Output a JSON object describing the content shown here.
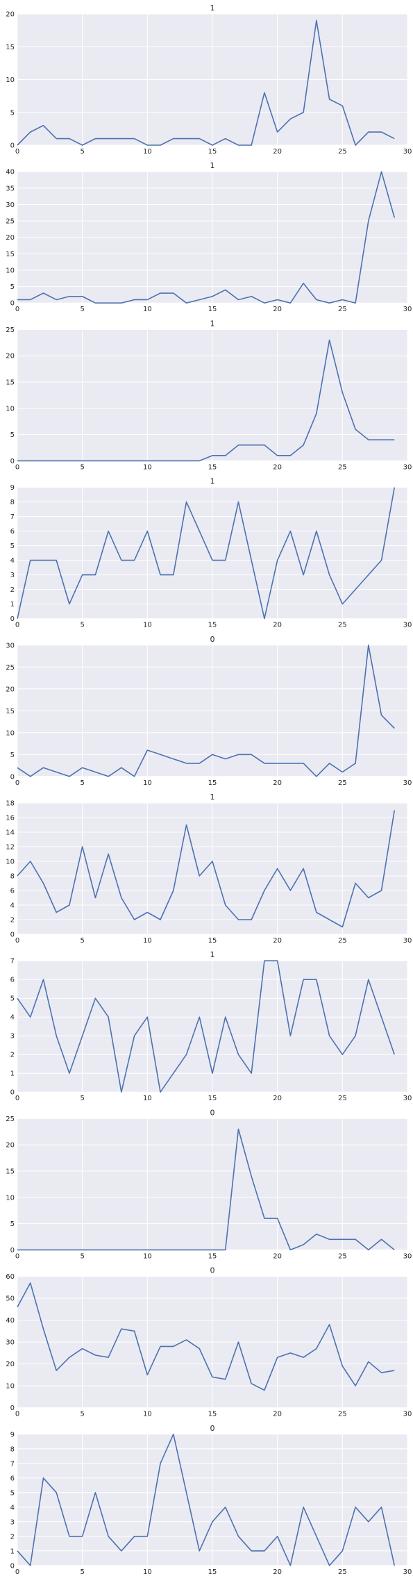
{
  "style": {
    "plot_bg": "#eaeaf2",
    "grid": "#ffffff",
    "line": "#4c72b0",
    "text": "#262626"
  },
  "chart_data": [
    {
      "type": "line",
      "title": "1",
      "ylim": [
        0,
        20
      ],
      "yticks": [
        0,
        5,
        10,
        15,
        20
      ],
      "xlim": [
        0,
        30
      ],
      "xticks": [
        0,
        5,
        10,
        15,
        20,
        25,
        30
      ],
      "grid": true,
      "values": [
        0,
        2,
        3,
        1,
        1,
        0,
        1,
        1,
        1,
        1,
        0,
        0,
        1,
        1,
        1,
        0,
        1,
        0,
        0,
        8,
        2,
        4,
        5,
        19,
        7,
        6,
        0,
        2,
        2,
        1
      ]
    },
    {
      "type": "line",
      "title": "1",
      "ylim": [
        0,
        40
      ],
      "yticks": [
        0,
        5,
        10,
        15,
        20,
        25,
        30,
        35,
        40
      ],
      "xlim": [
        0,
        30
      ],
      "xticks": [
        0,
        5,
        10,
        15,
        20,
        25,
        30
      ],
      "grid": true,
      "values": [
        1,
        1,
        3,
        1,
        2,
        2,
        0,
        0,
        0,
        1,
        1,
        3,
        3,
        0,
        1,
        2,
        4,
        1,
        2,
        0,
        1,
        0,
        6,
        1,
        0,
        1,
        0,
        25,
        40,
        26
      ]
    },
    {
      "type": "line",
      "title": "1",
      "ylim": [
        0,
        25
      ],
      "yticks": [
        0,
        5,
        10,
        15,
        20,
        25
      ],
      "xlim": [
        0,
        30
      ],
      "xticks": [
        0,
        5,
        10,
        15,
        20,
        25,
        30
      ],
      "grid": true,
      "values": [
        0,
        0,
        0,
        0,
        0,
        0,
        0,
        0,
        0,
        0,
        0,
        0,
        0,
        0,
        0,
        1,
        1,
        3,
        3,
        3,
        1,
        1,
        3,
        9,
        23,
        13,
        6,
        4,
        4,
        4
      ]
    },
    {
      "type": "line",
      "title": "1",
      "ylim": [
        0,
        9
      ],
      "yticks": [
        0,
        1,
        2,
        3,
        4,
        5,
        6,
        7,
        8,
        9
      ],
      "xlim": [
        0,
        30
      ],
      "xticks": [
        0,
        5,
        10,
        15,
        20,
        25,
        30
      ],
      "grid": true,
      "values": [
        0,
        4,
        4,
        4,
        1,
        3,
        3,
        6,
        4,
        4,
        6,
        3,
        3,
        8,
        6,
        4,
        4,
        8,
        4,
        0,
        4,
        6,
        3,
        6,
        3,
        1,
        2,
        3,
        4,
        9
      ]
    },
    {
      "type": "line",
      "title": "0",
      "ylim": [
        0,
        30
      ],
      "yticks": [
        0,
        5,
        10,
        15,
        20,
        25,
        30
      ],
      "xlim": [
        0,
        30
      ],
      "xticks": [
        0,
        5,
        10,
        15,
        20,
        25,
        30
      ],
      "grid": true,
      "values": [
        2,
        0,
        2,
        1,
        0,
        2,
        1,
        0,
        2,
        0,
        6,
        5,
        4,
        3,
        3,
        5,
        4,
        5,
        5,
        3,
        3,
        3,
        3,
        0,
        3,
        1,
        3,
        30,
        14,
        11
      ]
    },
    {
      "type": "line",
      "title": "1",
      "ylim": [
        0,
        18
      ],
      "yticks": [
        0,
        2,
        4,
        6,
        8,
        10,
        12,
        14,
        16,
        18
      ],
      "xlim": [
        0,
        30
      ],
      "xticks": [
        0,
        5,
        10,
        15,
        20,
        25,
        30
      ],
      "grid": true,
      "values": [
        8,
        10,
        7,
        3,
        4,
        12,
        5,
        11,
        5,
        2,
        3,
        2,
        6,
        15,
        8,
        10,
        4,
        2,
        2,
        6,
        9,
        6,
        9,
        3,
        2,
        1,
        7,
        5,
        6,
        17
      ]
    },
    {
      "type": "line",
      "title": "1",
      "ylim": [
        0,
        7
      ],
      "yticks": [
        0,
        1,
        2,
        3,
        4,
        5,
        6,
        7
      ],
      "xlim": [
        0,
        30
      ],
      "xticks": [
        0,
        5,
        10,
        15,
        20,
        25,
        30
      ],
      "grid": true,
      "values": [
        5,
        4,
        6,
        3,
        1,
        3,
        5,
        4,
        0,
        3,
        4,
        0,
        1,
        2,
        4,
        1,
        4,
        2,
        1,
        7,
        7,
        3,
        6,
        6,
        3,
        2,
        3,
        6,
        4,
        2
      ]
    },
    {
      "type": "line",
      "title": "0",
      "ylim": [
        0,
        25
      ],
      "yticks": [
        0,
        5,
        10,
        15,
        20,
        25
      ],
      "xlim": [
        0,
        30
      ],
      "xticks": [
        0,
        5,
        10,
        15,
        20,
        25,
        30
      ],
      "grid": true,
      "values": [
        0,
        0,
        0,
        0,
        0,
        0,
        0,
        0,
        0,
        0,
        0,
        0,
        0,
        0,
        0,
        0,
        0,
        23,
        14,
        6,
        6,
        0,
        1,
        3,
        2,
        2,
        2,
        0,
        2,
        0
      ]
    },
    {
      "type": "line",
      "title": "0",
      "ylim": [
        0,
        60
      ],
      "yticks": [
        0,
        10,
        20,
        30,
        40,
        50,
        60
      ],
      "xlim": [
        0,
        30
      ],
      "xticks": [
        0,
        5,
        10,
        15,
        20,
        25,
        30
      ],
      "grid": true,
      "values": [
        46,
        57,
        36,
        17,
        23,
        27,
        24,
        23,
        36,
        35,
        15,
        28,
        28,
        31,
        27,
        14,
        13,
        30,
        11,
        8,
        23,
        25,
        23,
        27,
        38,
        19,
        10,
        21,
        16,
        17
      ]
    },
    {
      "type": "line",
      "title": "0",
      "ylim": [
        0,
        9
      ],
      "yticks": [
        0,
        1,
        2,
        3,
        4,
        5,
        6,
        7,
        8,
        9
      ],
      "xlim": [
        0,
        30
      ],
      "xticks": [
        0,
        5,
        10,
        15,
        20,
        25,
        30
      ],
      "grid": true,
      "values": [
        1,
        0,
        6,
        5,
        2,
        2,
        5,
        2,
        1,
        2,
        2,
        7,
        9,
        5,
        1,
        3,
        4,
        2,
        1,
        1,
        2,
        0,
        4,
        2,
        0,
        1,
        4,
        3,
        4,
        0
      ]
    }
  ]
}
